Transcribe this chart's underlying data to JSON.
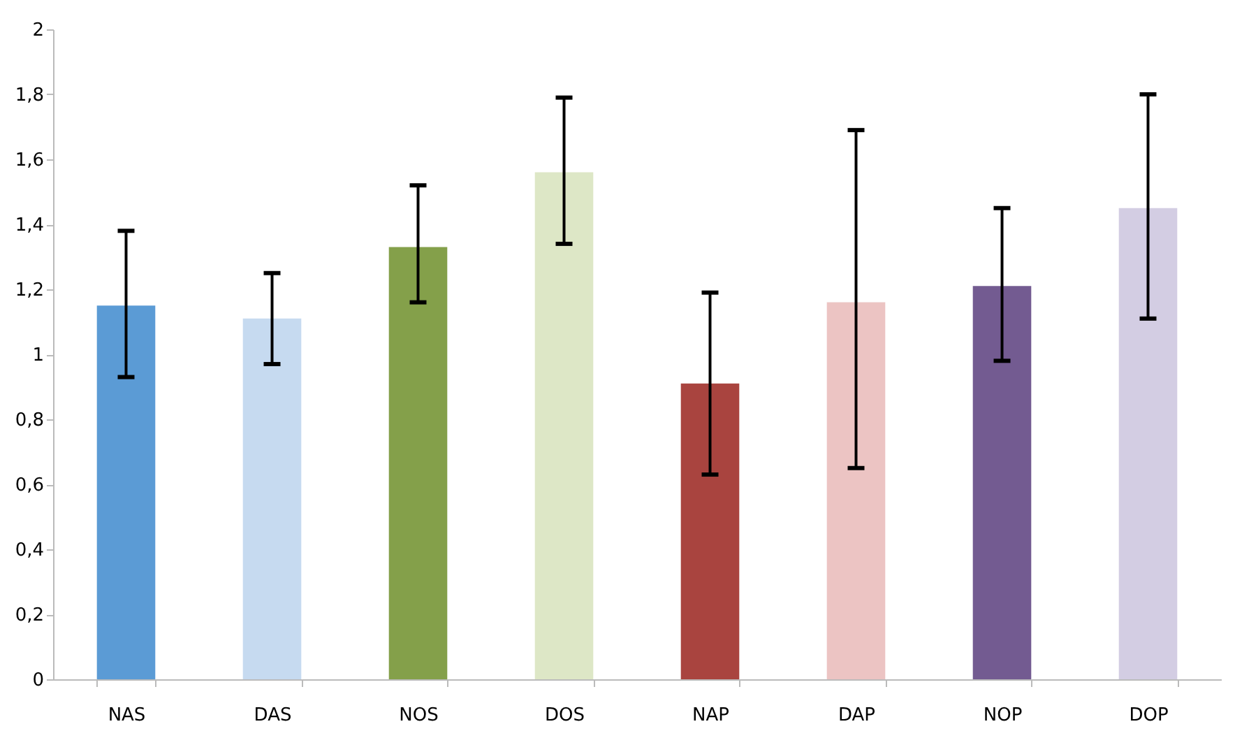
{
  "chart_data": {
    "type": "bar",
    "categories": [
      "NAS",
      "DAS",
      "NOS",
      "DOS",
      "NAP",
      "DAP",
      "NOP",
      "DOP"
    ],
    "values": [
      1.15,
      1.11,
      1.33,
      1.56,
      0.91,
      1.16,
      1.21,
      1.45
    ],
    "colors": [
      "#5b9bd5",
      "#c6daf0",
      "#84a04a",
      "#dde7c6",
      "#a9443f",
      "#ecc4c3",
      "#735b91",
      "#d3cde3"
    ],
    "errors": [
      [
        0.93,
        1.38
      ],
      [
        0.97,
        1.25
      ],
      [
        1.16,
        1.52
      ],
      [
        1.34,
        1.79
      ],
      [
        0.63,
        1.19
      ],
      [
        0.65,
        1.69
      ],
      [
        0.98,
        1.45
      ],
      [
        1.11,
        1.8
      ]
    ],
    "ylim": [
      0,
      2
    ],
    "yticks": [
      0,
      {
        "value": 0.2,
        "label": "0,2"
      },
      {
        "value": 0.4,
        "label": "0,4"
      },
      {
        "value": 0.6,
        "label": "0,6"
      },
      {
        "value": 0.8,
        "label": "0,8"
      },
      1,
      {
        "value": 1.2,
        "label": "1,2"
      },
      {
        "value": 1.4,
        "label": "1,4"
      },
      {
        "value": 1.6,
        "label": "1,6"
      },
      {
        "value": 1.8,
        "label": "1,8"
      },
      2
    ],
    "grid": false
  }
}
